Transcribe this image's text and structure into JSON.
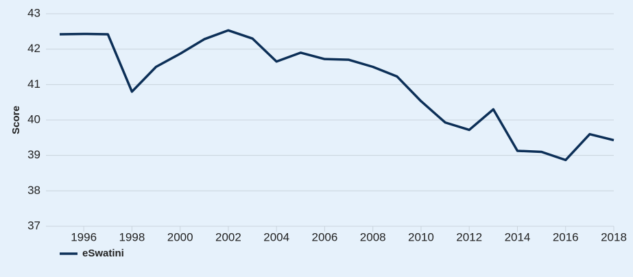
{
  "chart_data": {
    "type": "line",
    "y_label": "Score",
    "x": [
      1995,
      1996,
      1997,
      1998,
      1999,
      2000,
      2001,
      2002,
      2003,
      2004,
      2005,
      2006,
      2007,
      2008,
      2009,
      2010,
      2011,
      2012,
      2013,
      2014,
      2015,
      2016,
      2017,
      2018
    ],
    "series": [
      {
        "name": "eSwatini",
        "color": "#0c2f57",
        "values": [
          42.42,
          42.43,
          42.42,
          40.8,
          41.5,
          41.87,
          42.28,
          42.53,
          42.3,
          41.65,
          41.9,
          41.72,
          41.7,
          41.5,
          41.23,
          40.53,
          39.93,
          39.72,
          40.3,
          39.13,
          39.1,
          38.87,
          39.6,
          39.43
        ]
      }
    ],
    "xlim": [
      1995,
      2018
    ],
    "xticks": [
      1996,
      1998,
      2000,
      2002,
      2004,
      2006,
      2008,
      2010,
      2012,
      2014,
      2016,
      2018
    ],
    "ylim": [
      37,
      43
    ],
    "yticks": [
      37,
      38,
      39,
      40,
      41,
      42,
      43
    ],
    "grid": true,
    "legend": "bottom-left"
  }
}
